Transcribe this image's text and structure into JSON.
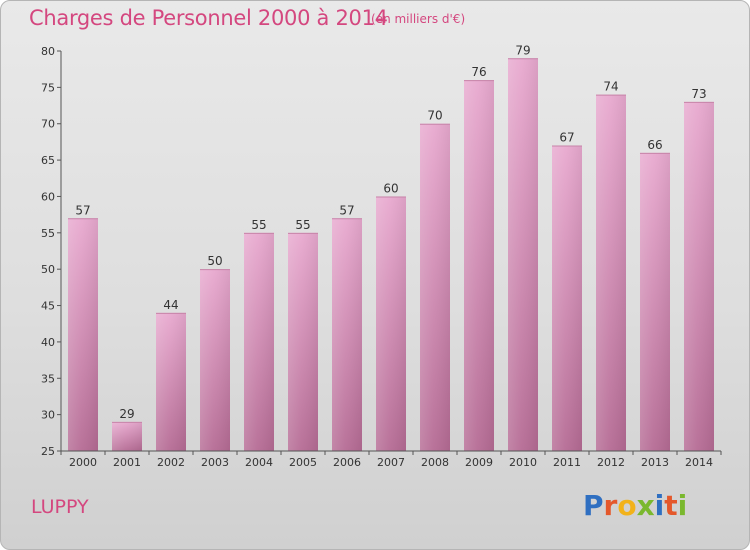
{
  "header": {
    "title": "Charges de Personnel 2000 à 2014",
    "subtitle": "(en milliers d'€)"
  },
  "footer": {
    "commune": "LUPPY",
    "logo_text": "Proxiti"
  },
  "colors": {
    "title": "#d4477f",
    "bar_top": "#e8a9cf",
    "bar_bottom": "#b56b94",
    "logo_letters": [
      "#2f6fc1",
      "#e4582b",
      "#f2b21a",
      "#7ab82e",
      "#2f6fc1",
      "#e4582b",
      "#7ab82e"
    ]
  },
  "chart_data": {
    "type": "bar",
    "title": "Charges de Personnel 2000 à 2014",
    "subtitle": "(en milliers d'€)",
    "categories": [
      "2000",
      "2001",
      "2002",
      "2003",
      "2004",
      "2005",
      "2006",
      "2007",
      "2008",
      "2009",
      "2010",
      "2011",
      "2012",
      "2013",
      "2014"
    ],
    "values": [
      57,
      29,
      44,
      50,
      55,
      55,
      57,
      60,
      70,
      76,
      79,
      67,
      74,
      66,
      73
    ],
    "ylim": [
      25,
      80
    ],
    "yticks": [
      25,
      30,
      35,
      40,
      45,
      50,
      55,
      60,
      65,
      70,
      75,
      80
    ],
    "grid": false,
    "xlabel": "",
    "ylabel": ""
  }
}
